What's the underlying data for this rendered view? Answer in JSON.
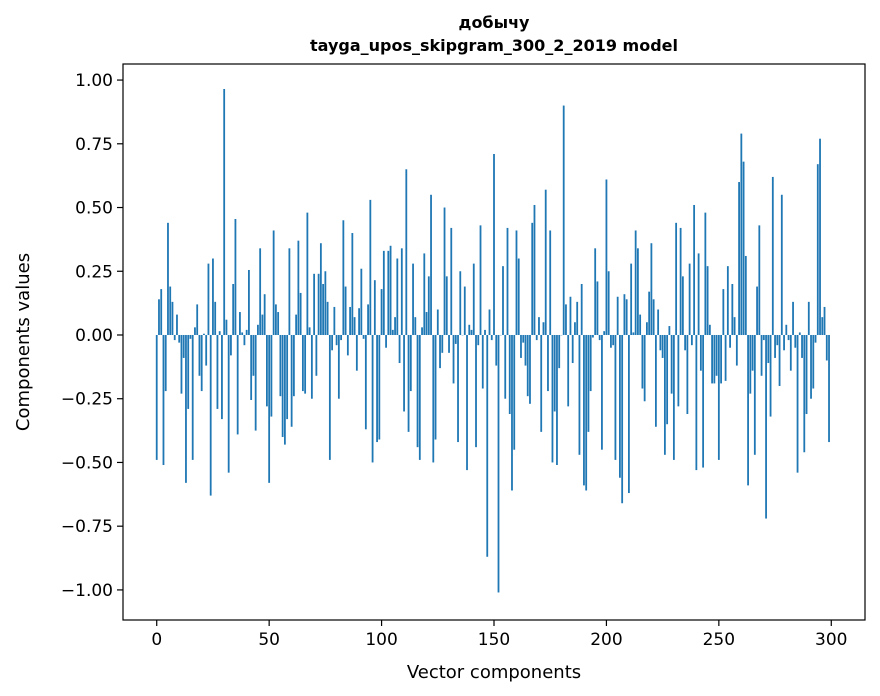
{
  "chart_data": {
    "type": "bar",
    "title_line1": "добычу",
    "title_line2": "tayga_upos_skipgram_300_2_2019 model",
    "xlabel": "Vector components",
    "ylabel": "Components values",
    "xlim": [
      -15,
      315
    ],
    "ylim": [
      -1.118,
      1.063
    ],
    "xticks": [
      0,
      50,
      100,
      150,
      200,
      250,
      300
    ],
    "yticks": [
      -1.0,
      -0.75,
      -0.5,
      -0.25,
      0.0,
      0.25,
      0.5,
      0.75,
      1.0
    ],
    "ytick_labels": [
      "−1.00",
      "−0.75",
      "−0.50",
      "−0.25",
      "0.00",
      "0.25",
      "0.50",
      "0.75",
      "1.00"
    ],
    "grid": false,
    "bar_color": "#1f77b4",
    "values": [
      -0.49,
      0.14,
      0.18,
      -0.51,
      -0.22,
      0.44,
      0.19,
      0.13,
      -0.02,
      0.08,
      -0.03,
      -0.23,
      -0.09,
      -0.58,
      -0.29,
      -0.015,
      -0.49,
      0.03,
      0.12,
      -0.16,
      -0.22,
      0.005,
      -0.12,
      0.28,
      -0.63,
      0.3,
      0.13,
      -0.29,
      0.015,
      -0.33,
      0.965,
      0.06,
      -0.54,
      -0.08,
      0.2,
      0.455,
      -0.39,
      0.09,
      0.01,
      -0.04,
      0.02,
      0.255,
      -0.255,
      -0.16,
      -0.375,
      0.04,
      0.34,
      0.08,
      0.16,
      -0.28,
      -0.58,
      -0.32,
      0.41,
      0.12,
      0.09,
      -0.24,
      -0.4,
      -0.43,
      -0.33,
      0.34,
      -0.36,
      -0.24,
      0.08,
      0.37,
      0.165,
      -0.22,
      -0.23,
      0.48,
      0.03,
      -0.25,
      0.24,
      -0.16,
      0.24,
      0.36,
      0.2,
      0.25,
      0.13,
      -0.49,
      -0.06,
      0.11,
      -0.04,
      -0.25,
      -0.02,
      0.45,
      0.19,
      -0.08,
      0.11,
      0.4,
      0.07,
      -0.14,
      0.105,
      0.26,
      -0.015,
      -0.37,
      0.12,
      0.53,
      -0.5,
      0.215,
      -0.42,
      -0.41,
      0.18,
      0.33,
      -0.05,
      0.33,
      0.35,
      0.02,
      0.07,
      0.3,
      -0.11,
      0.34,
      -0.3,
      0.65,
      -0.38,
      -0.22,
      0.28,
      0.07,
      -0.44,
      -0.49,
      0.03,
      0.32,
      0.09,
      0.23,
      0.55,
      -0.5,
      -0.41,
      0.1,
      -0.13,
      -0.07,
      0.5,
      0.23,
      -0.07,
      0.42,
      -0.19,
      -0.035,
      -0.42,
      0.25,
      0.0,
      0.19,
      -0.53,
      0.04,
      0.02,
      0.28,
      -0.44,
      -0.04,
      0.43,
      -0.21,
      0.02,
      -0.87,
      0.1,
      -0.02,
      0.71,
      -0.12,
      -1.01,
      0.0,
      0.27,
      -0.25,
      0.42,
      -0.31,
      -0.61,
      -0.45,
      0.41,
      0.3,
      -0.09,
      -0.03,
      -0.12,
      -0.24,
      -0.27,
      0.44,
      0.51,
      -0.02,
      0.07,
      -0.38,
      0.05,
      0.57,
      -0.22,
      0.41,
      -0.5,
      -0.3,
      -0.51,
      -0.13,
      0.0,
      0.9,
      0.12,
      -0.28,
      0.15,
      -0.11,
      0.05,
      0.13,
      -0.47,
      0.2,
      -0.59,
      -0.61,
      -0.38,
      -0.22,
      -0.01,
      0.34,
      0.21,
      -0.02,
      -0.45,
      0.015,
      0.61,
      0.25,
      -0.05,
      -0.04,
      -0.49,
      0.15,
      -0.56,
      -0.66,
      0.16,
      0.14,
      -0.62,
      0.28,
      0.01,
      0.41,
      0.34,
      0.08,
      -0.21,
      -0.26,
      0.05,
      0.17,
      0.36,
      0.14,
      -0.36,
      0.1,
      -0.06,
      -0.09,
      -0.47,
      -0.35,
      0.035,
      -0.23,
      -0.49,
      0.44,
      -0.28,
      0.42,
      0.23,
      -0.06,
      -0.31,
      0.28,
      -0.04,
      0.51,
      -0.53,
      0.32,
      -0.14,
      -0.52,
      0.48,
      0.27,
      0.04,
      -0.19,
      -0.19,
      -0.16,
      -0.49,
      -0.19,
      0.18,
      -0.18,
      0.27,
      -0.05,
      0.2,
      0.07,
      -0.12,
      0.6,
      0.79,
      0.68,
      0.31,
      -0.59,
      -0.23,
      -0.14,
      -0.47,
      0.19,
      0.43,
      -0.16,
      -0.02,
      -0.72,
      -0.11,
      -0.32,
      0.62,
      -0.09,
      -0.04,
      -0.2,
      0.55,
      -0.06,
      0.04,
      -0.02,
      -0.14,
      0.13,
      -0.05,
      -0.54,
      0.01,
      -0.09,
      -0.46,
      -0.31,
      0.13,
      -0.25,
      -0.21,
      -0.03,
      0.67,
      0.77,
      0.07,
      0.11,
      -0.1,
      -0.42
    ]
  }
}
